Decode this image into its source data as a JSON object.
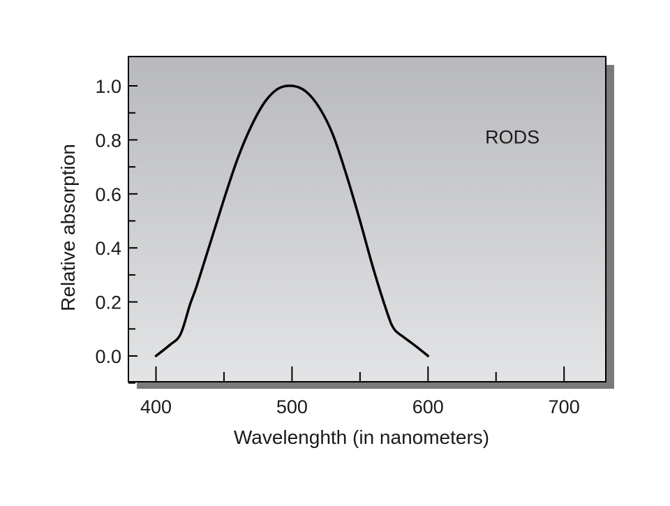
{
  "chart_data": {
    "type": "line",
    "xlabel": "Wavelenghth (in nanometers)",
    "ylabel": "Relative absorption",
    "xlim": [
      380,
      730
    ],
    "ylim": [
      -0.1,
      1.1
    ],
    "x_ticks": [
      400,
      500,
      600,
      700
    ],
    "x_tick_labels": [
      "400",
      "500",
      "600",
      "700"
    ],
    "x_minor_ticks": [
      450,
      550,
      650
    ],
    "y_ticks": [
      0.0,
      0.2,
      0.4,
      0.6,
      0.8,
      1.0
    ],
    "y_tick_labels": [
      "0.0",
      "0.2",
      "0.4",
      "0.6",
      "0.8",
      "1.0"
    ],
    "y_minor_ticks": [
      -0.1,
      0.1,
      0.3,
      0.5,
      0.7,
      0.9
    ],
    "grid": false,
    "annotations": [
      {
        "text": "RODS",
        "x": 642,
        "y": 0.81
      }
    ],
    "series": [
      {
        "color": "#000000",
        "x": [
          400,
          410,
          418,
          425,
          430,
          440,
          450,
          460,
          470,
          480,
          490,
          500,
          510,
          520,
          530,
          540,
          550,
          560,
          570,
          575,
          582,
          590,
          600
        ],
        "y": [
          0.0,
          0.04,
          0.08,
          0.19,
          0.26,
          0.42,
          0.58,
          0.73,
          0.85,
          0.94,
          0.99,
          1.0,
          0.98,
          0.92,
          0.82,
          0.67,
          0.5,
          0.32,
          0.16,
          0.1,
          0.07,
          0.04,
          0.0
        ]
      }
    ]
  }
}
